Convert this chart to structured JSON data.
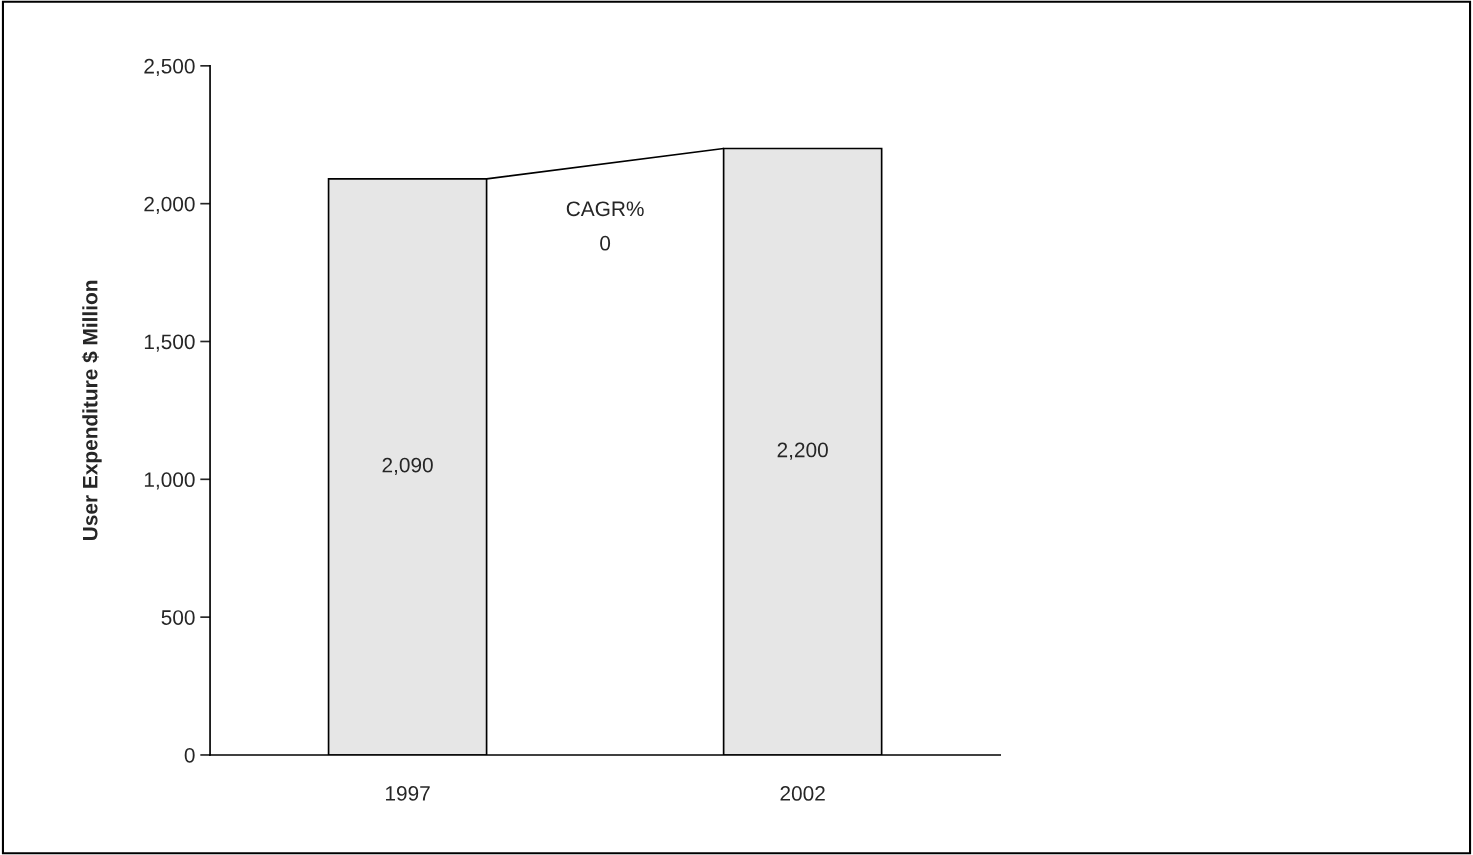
{
  "chart_data": {
    "type": "bar",
    "ylabel": "User Expenditure $ Million",
    "categories": [
      "1997",
      "2002"
    ],
    "values": [
      2090,
      2200
    ],
    "value_labels": [
      "2,090",
      "2,200"
    ],
    "color": "#e6e6e6",
    "ylim": [
      0,
      2500
    ],
    "yticks": [
      {
        "value": 0,
        "label": "0"
      },
      {
        "value": 500,
        "label": "500"
      },
      {
        "value": 1000,
        "label": "1,000"
      },
      {
        "value": 1500,
        "label": "1,500"
      },
      {
        "value": 2000,
        "label": "2,000"
      },
      {
        "value": 2500,
        "label": "2,500"
      }
    ],
    "annotations": [
      "CAGR%",
      "0"
    ],
    "grid": false,
    "legend": false
  }
}
